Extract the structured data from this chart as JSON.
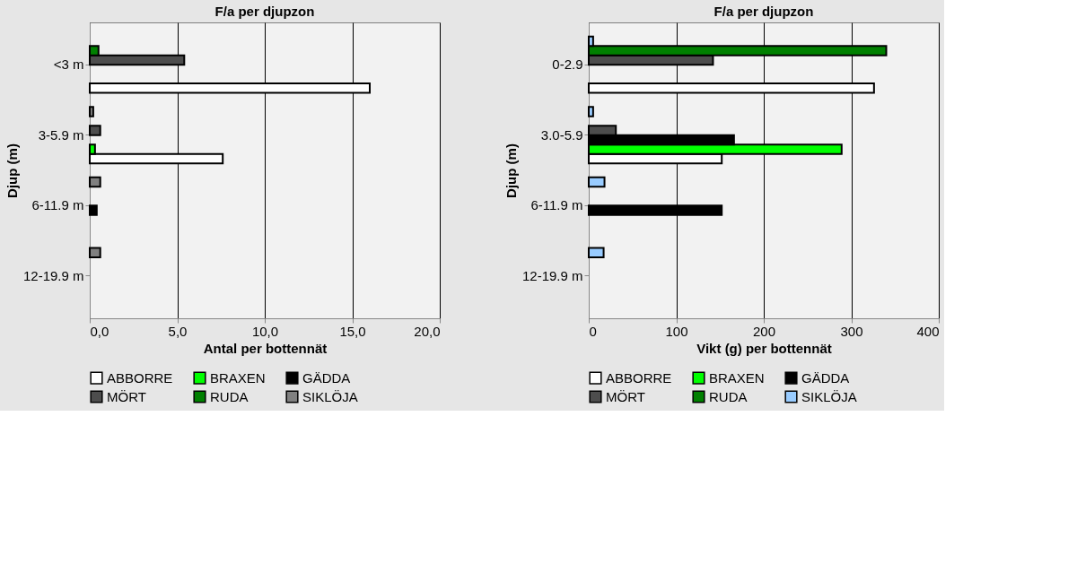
{
  "chart_data": [
    {
      "type": "bar",
      "orientation": "horizontal",
      "title": "F/a per djupzon",
      "xlabel": "Antal per bottennät",
      "ylabel": "Djup (m)",
      "categories": [
        "<3 m",
        "3-5.9 m",
        "6-11.9 m",
        "12-19.9 m"
      ],
      "xlim": [
        0,
        20
      ],
      "xticks": [
        {
          "value": 0,
          "label": "0,0"
        },
        {
          "value": 5,
          "label": "5,0"
        },
        {
          "value": 10,
          "label": "10,0"
        },
        {
          "value": 15,
          "label": "15,0"
        },
        {
          "value": 20,
          "label": "20,0"
        }
      ],
      "grid": "x",
      "legend": "bottom",
      "series": [
        {
          "name": "ABBORRE",
          "color": "#ffffff",
          "values": [
            16.0,
            7.6,
            0,
            0
          ]
        },
        {
          "name": "BRAXEN",
          "color": "#00ff00",
          "values": [
            0,
            0.3,
            0,
            0
          ]
        },
        {
          "name": "GÄDDA",
          "color": "#000000",
          "values": [
            0,
            0,
            0.4,
            0
          ]
        },
        {
          "name": "MÖRT",
          "color": "#4d4d4d",
          "values": [
            5.4,
            0.6,
            0,
            0
          ]
        },
        {
          "name": "RUDA",
          "color": "#008000",
          "values": [
            0.5,
            0,
            0,
            0
          ]
        },
        {
          "name": "SIKLÖJA",
          "color": "#808080",
          "values": [
            0,
            0.2,
            0.6,
            0.6
          ]
        }
      ]
    },
    {
      "type": "bar",
      "orientation": "horizontal",
      "title": "F/a per djupzon",
      "xlabel": "Vikt (g) per bottennät",
      "ylabel": "Djup (m)",
      "categories": [
        "0-2.9",
        "3.0-5.9",
        "6-11.9 m",
        "12-19.9 m"
      ],
      "xlim": [
        0,
        400
      ],
      "xticks": [
        0,
        100,
        200,
        300,
        400
      ],
      "grid": "x",
      "legend": "bottom",
      "series": [
        {
          "name": "ABBORRE",
          "color": "#ffffff",
          "values": [
            326,
            152,
            0,
            0
          ]
        },
        {
          "name": "BRAXEN",
          "color": "#00ff00",
          "values": [
            0,
            289,
            0,
            0
          ]
        },
        {
          "name": "GÄDDA",
          "color": "#000000",
          "values": [
            0,
            166,
            152,
            0
          ]
        },
        {
          "name": "MÖRT",
          "color": "#4d4d4d",
          "values": [
            142,
            31,
            0,
            0
          ]
        },
        {
          "name": "RUDA",
          "color": "#008000",
          "values": [
            340,
            0,
            0,
            0
          ]
        },
        {
          "name": "SIKLÖJA",
          "color": "#99ccff",
          "values": [
            5,
            5,
            18,
            17
          ]
        }
      ]
    }
  ]
}
